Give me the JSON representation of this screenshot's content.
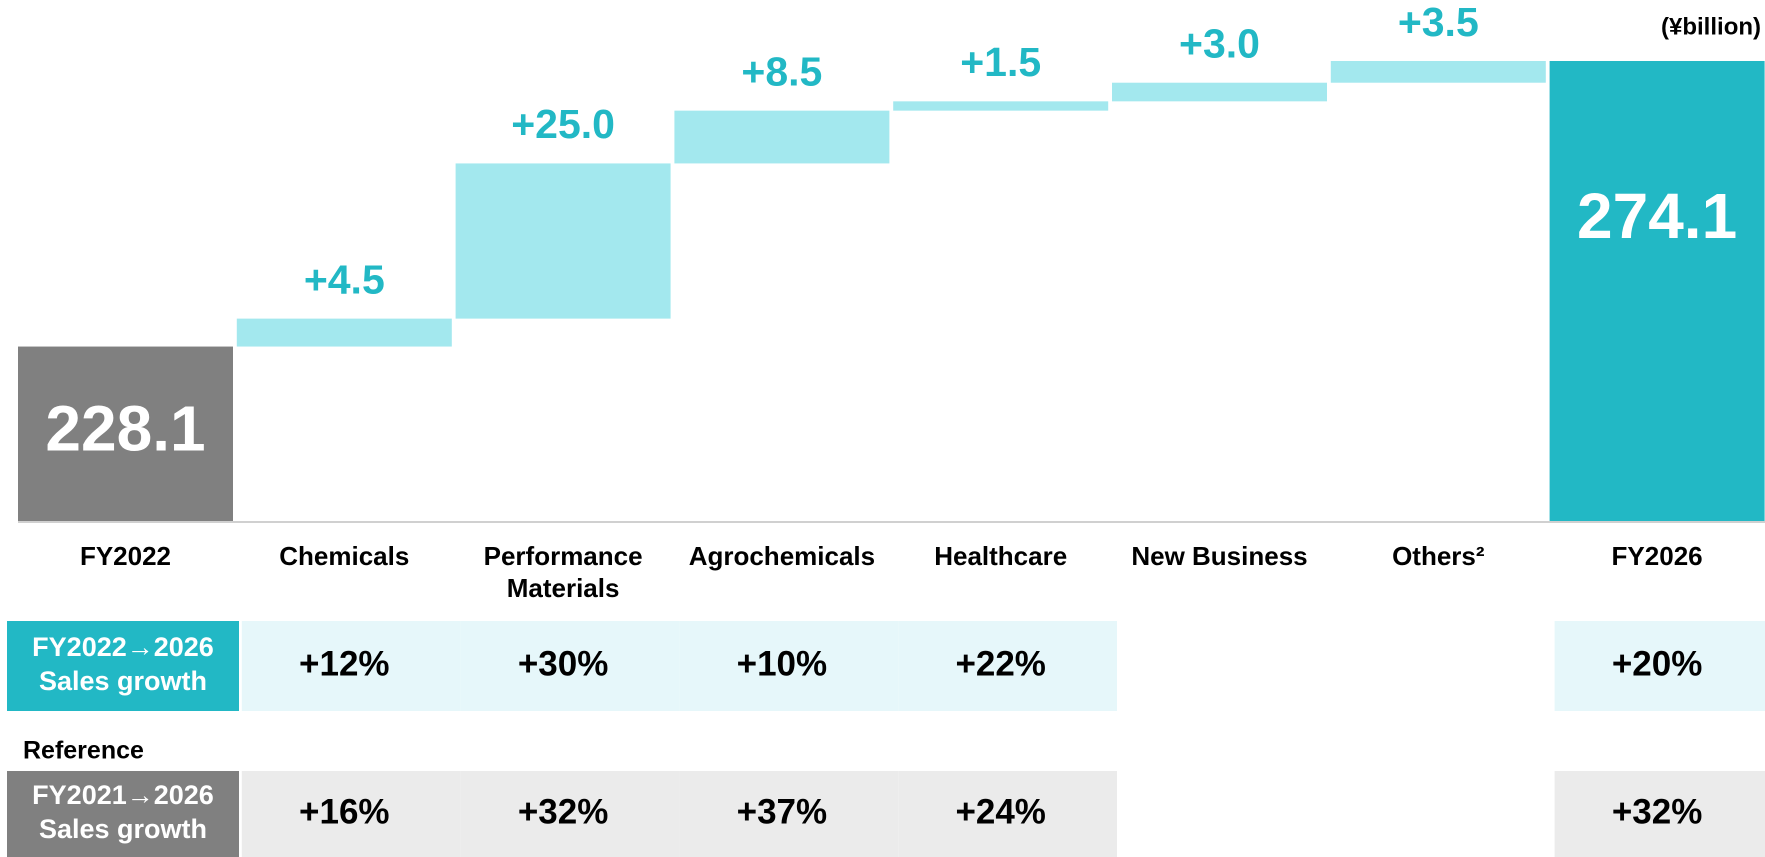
{
  "chart_data": {
    "type": "waterfall",
    "unit": "(¥billion)",
    "categories": [
      "FY2022",
      "Chemicals",
      "Performance Materials",
      "Agrochemicals",
      "Healthcare",
      "New Business",
      "Others²",
      "FY2026"
    ],
    "values": [
      228.1,
      4.5,
      25.0,
      8.5,
      1.5,
      3.0,
      3.5,
      274.1
    ],
    "value_labels": [
      "228.1",
      "+4.5",
      "+25.0",
      "+8.5",
      "+1.5",
      "+3.0",
      "+3.5",
      "274.1"
    ],
    "kinds": [
      "total",
      "increase",
      "increase",
      "increase",
      "increase",
      "increase",
      "increase",
      "total"
    ],
    "colors": [
      "#808080",
      "#a3e8ee",
      "#a3e8ee",
      "#a3e8ee",
      "#a3e8ee",
      "#a3e8ee",
      "#a3e8ee",
      "#22b8c5"
    ],
    "ylim": [
      200,
      275
    ]
  },
  "table": {
    "reference": "Reference",
    "rows": [
      {
        "label": [
          "FY2022→2026",
          "Sales growth"
        ],
        "color": "#22b8c5",
        "cell_color": "#e6f7fa",
        "cells": [
          "+12%",
          "+30%",
          "+10%",
          "+22%",
          null,
          null,
          "+20%"
        ]
      },
      {
        "label": [
          "FY2021→2026",
          "Sales growth"
        ],
        "color": "#808080",
        "cell_color": "#ebebeb",
        "cells": [
          "+16%",
          "+32%",
          "+37%",
          "+24%",
          null,
          null,
          "+32%"
        ]
      }
    ]
  }
}
